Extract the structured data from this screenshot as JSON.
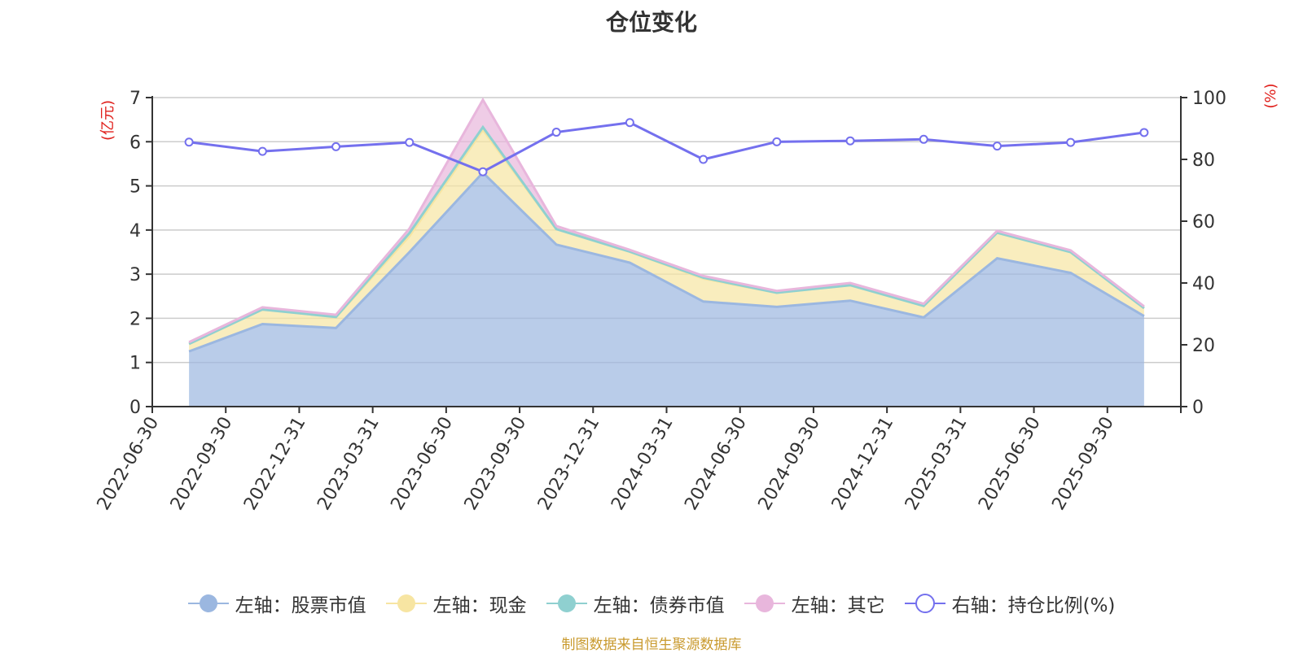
{
  "title": "仓位变化",
  "source": "制图数据来自恒生聚源数据库",
  "chart_data": {
    "type": "area",
    "title": "仓位变化",
    "stacked": true,
    "categories": [
      "2022-06-30",
      "2022-09-30",
      "2022-12-31",
      "2023-03-31",
      "2023-06-30",
      "2023-09-30",
      "2023-12-31",
      "2024-03-31",
      "2024-06-30",
      "2024-09-30",
      "2024-12-31",
      "2025-03-31",
      "2025-06-30",
      "2025-09-30"
    ],
    "left_axis": {
      "unit_label": "(亿元)",
      "ylim": [
        0,
        7
      ],
      "ticks": [
        "0",
        "1",
        "2",
        "3",
        "4",
        "5",
        "6",
        "7"
      ]
    },
    "right_axis": {
      "unit_label": "(%)",
      "ylim": [
        0,
        100
      ],
      "ticks": [
        "0",
        "20",
        "40",
        "60",
        "80",
        "100"
      ]
    },
    "series": [
      {
        "name": "左轴：股票市值",
        "axis": "left",
        "color": "#9bb7e0",
        "values": [
          1.25,
          1.87,
          1.78,
          3.5,
          5.3,
          3.67,
          3.26,
          2.38,
          2.26,
          2.4,
          2.02,
          3.36,
          3.03,
          2.05
        ]
      },
      {
        "name": "左轴：现金",
        "axis": "left",
        "color": "#f7e5a2",
        "values": [
          0.17,
          0.33,
          0.25,
          0.36,
          0.97,
          0.35,
          0.25,
          0.52,
          0.32,
          0.35,
          0.26,
          0.58,
          0.47,
          0.18
        ]
      },
      {
        "name": "左轴：债券市值",
        "axis": "left",
        "color": "#8fd0d0",
        "values": [
          0.0,
          0.0,
          0.0,
          0.07,
          0.06,
          0.0,
          0.0,
          0.02,
          0.0,
          0.0,
          0.0,
          0.0,
          0.0,
          0.0
        ]
      },
      {
        "name": "左轴：其它",
        "axis": "left",
        "color": "#e8b6dc",
        "values": [
          0.04,
          0.05,
          0.05,
          0.1,
          0.62,
          0.07,
          0.04,
          0.04,
          0.04,
          0.05,
          0.05,
          0.04,
          0.04,
          0.04
        ]
      },
      {
        "name": "右轴：持仓比例(%)",
        "axis": "right",
        "type": "line",
        "color": "#7470ee",
        "values": [
          85.6,
          82.6,
          84.1,
          85.5,
          76.0,
          88.8,
          91.9,
          80.0,
          85.7,
          86.0,
          86.5,
          84.3,
          85.5,
          88.7
        ]
      }
    ]
  }
}
